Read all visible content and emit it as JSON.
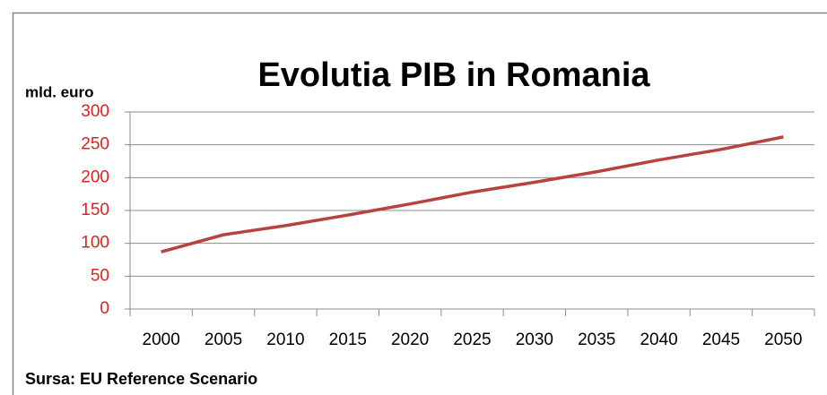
{
  "chart_data": {
    "type": "line",
    "title": "Evolutia PIB in Romania",
    "y_label": "mld. euro",
    "source": "Sursa: EU Reference Scenario",
    "categories": [
      "2000",
      "2005",
      "2010",
      "2015",
      "2020",
      "2025",
      "2030",
      "2035",
      "2040",
      "2045",
      "2050"
    ],
    "values": [
      87,
      113,
      127,
      143,
      160,
      178,
      193,
      209,
      227,
      243,
      262
    ],
    "color": "#b8423f",
    "ylim": [
      0,
      300
    ],
    "yticks": [
      0,
      50,
      100,
      150,
      200,
      250,
      300
    ],
    "grid": true
  }
}
